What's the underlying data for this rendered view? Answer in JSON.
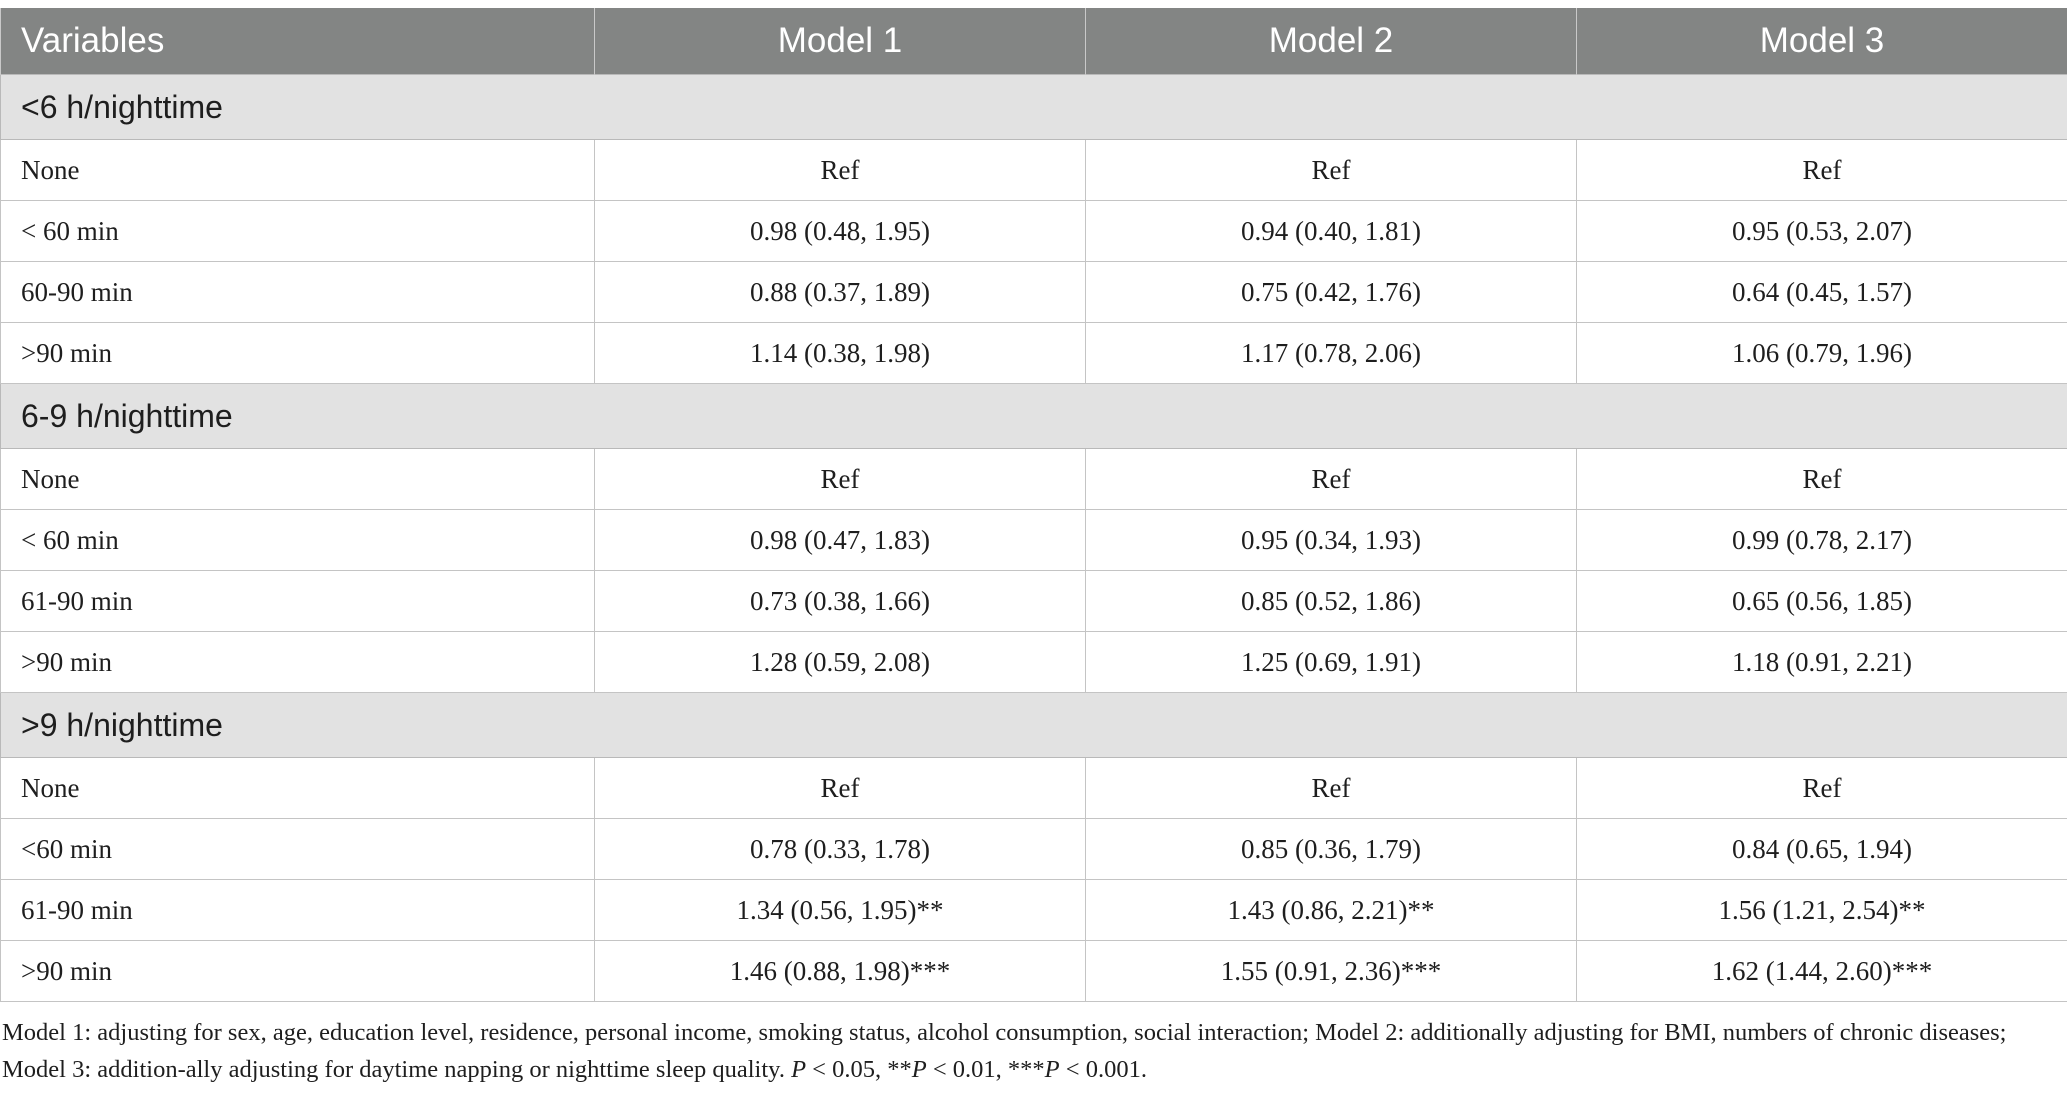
{
  "table": {
    "headers": [
      "Variables",
      "Model 1",
      "Model 2",
      "Model 3"
    ],
    "groups": [
      {
        "title": "<6 h/nighttime",
        "rows": [
          {
            "label": "None",
            "m1": "Ref",
            "m2": "Ref",
            "m3": "Ref"
          },
          {
            "label": "< 60 min",
            "m1": "0.98 (0.48, 1.95)",
            "m2": "0.94 (0.40, 1.81)",
            "m3": "0.95 (0.53, 2.07)"
          },
          {
            "label": "60-90 min",
            "m1": "0.88 (0.37, 1.89)",
            "m2": "0.75 (0.42, 1.76)",
            "m3": "0.64 (0.45, 1.57)"
          },
          {
            "label": ">90 min",
            "m1": "1.14 (0.38, 1.98)",
            "m2": "1.17 (0.78, 2.06)",
            "m3": "1.06 (0.79, 1.96)"
          }
        ]
      },
      {
        "title": "6-9 h/nighttime",
        "rows": [
          {
            "label": "None",
            "m1": "Ref",
            "m2": "Ref",
            "m3": "Ref"
          },
          {
            "label": "< 60 min",
            "m1": "0.98 (0.47, 1.83)",
            "m2": "0.95 (0.34, 1.93)",
            "m3": "0.99 (0.78, 2.17)"
          },
          {
            "label": "61-90 min",
            "m1": "0.73 (0.38, 1.66)",
            "m2": "0.85 (0.52, 1.86)",
            "m3": "0.65 (0.56, 1.85)"
          },
          {
            "label": ">90 min",
            "m1": "1.28 (0.59, 2.08)",
            "m2": "1.25 (0.69, 1.91)",
            "m3": "1.18 (0.91, 2.21)"
          }
        ]
      },
      {
        "title": ">9 h/nighttime",
        "rows": [
          {
            "label": "None",
            "m1": "Ref",
            "m2": "Ref",
            "m3": "Ref"
          },
          {
            "label": "<60 min",
            "m1": "0.78 (0.33, 1.78)",
            "m2": "0.85 (0.36, 1.79)",
            "m3": "0.84 (0.65, 1.94)"
          },
          {
            "label": "61-90 min",
            "m1": "1.34 (0.56, 1.95)**",
            "m2": "1.43 (0.86, 2.21)**",
            "m3": "1.56 (1.21, 2.54)**"
          },
          {
            "label": ">90 min",
            "m1": "1.46 (0.88, 1.98)***",
            "m2": "1.55 (0.91, 2.36)***",
            "m3": "1.62 (1.44, 2.60)***"
          }
        ]
      }
    ]
  },
  "footnote": {
    "line1": "Model 1: adjusting for sex, age, education level, residence, personal income, smoking status, alcohol consumption, social interaction; Model 2: additionally adjusting for BMI, numbers of",
    "line2_prefix": "chronic diseases; Model 3: addition-ally adjusting for daytime napping or nighttime sleep quality. ",
    "p1": "P",
    "t1": " < 0.05, **",
    "p2": "P",
    "t2": " < 0.01, ***",
    "p3": "P",
    "t3": " < 0.001."
  }
}
